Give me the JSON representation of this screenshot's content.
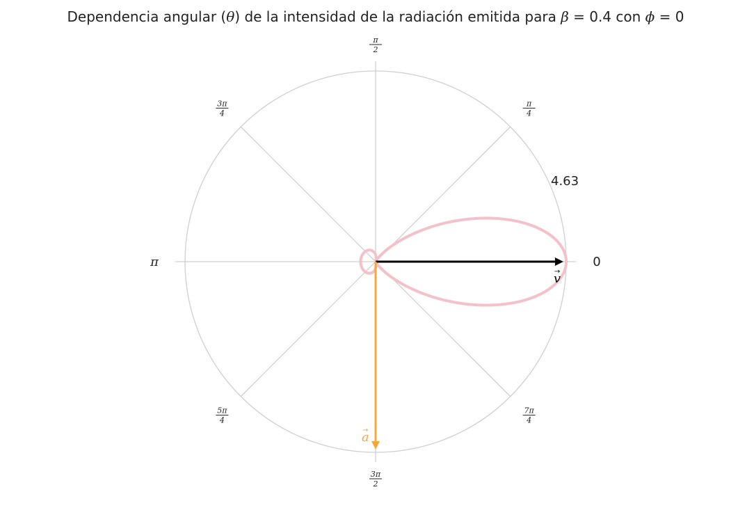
{
  "chart_data": {
    "type": "polar-line",
    "title": "Dependencia angular (θ) de la intensidad de la radiación emitida para β = 0.4 con ϕ = 0",
    "beta": 0.4,
    "phi": 0,
    "r_max": 4.63,
    "r_tick_label": "4.63",
    "grid": true,
    "theta_ticks": [
      {
        "angle_pi": 0,
        "label": "0"
      },
      {
        "angle_pi": 0.25,
        "num": "π",
        "den": "4"
      },
      {
        "angle_pi": 0.5,
        "num": "π",
        "den": "2"
      },
      {
        "angle_pi": 0.75,
        "num": "3π",
        "den": "4"
      },
      {
        "angle_pi": 1,
        "label": "π"
      },
      {
        "angle_pi": 1.25,
        "num": "5π",
        "den": "4"
      },
      {
        "angle_pi": 1.5,
        "num": "3π",
        "den": "2"
      },
      {
        "angle_pi": 1.75,
        "num": "7π",
        "den": "4"
      }
    ],
    "series": [
      {
        "color": "#f4c1c9",
        "formula": "sin^2(theta)-ish dipole pattern boosted along +x: I(θ) ∝ [ (1-β cosθ)^2 ... ]"
      }
    ],
    "vectors": [
      {
        "label": "v",
        "angle_pi": 0,
        "length_frac": 0.985,
        "color": "#000000"
      },
      {
        "label": "a",
        "angle_pi": 1.5,
        "length_frac": 0.985,
        "color": "#f5a83a"
      }
    ]
  }
}
